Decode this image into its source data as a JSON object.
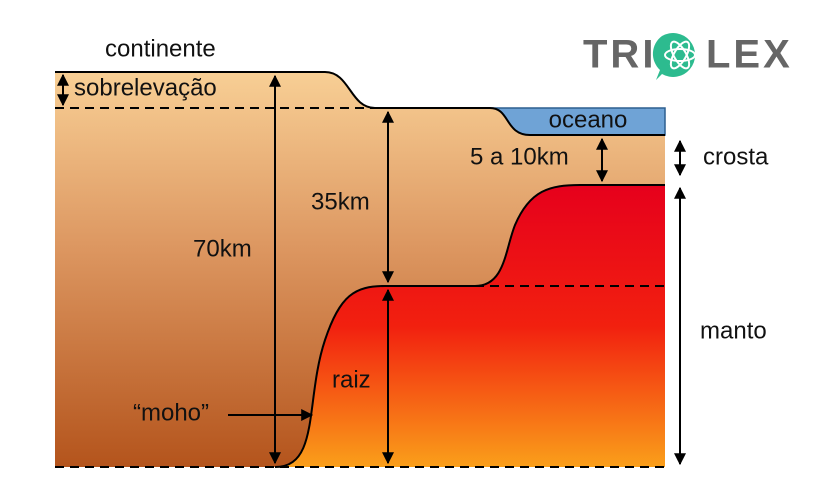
{
  "logo": {
    "left": "TRI",
    "right": "LEX"
  },
  "labels": {
    "continent": "continente",
    "uplift": "sobrelevação",
    "ocean": "oceano",
    "oceanic_thickness": "5 a 10km",
    "crust": "crosta",
    "thickness_35": "35km",
    "thickness_70": "70km",
    "mantle": "manto",
    "root": "raiz",
    "moho": "“moho”"
  }
}
